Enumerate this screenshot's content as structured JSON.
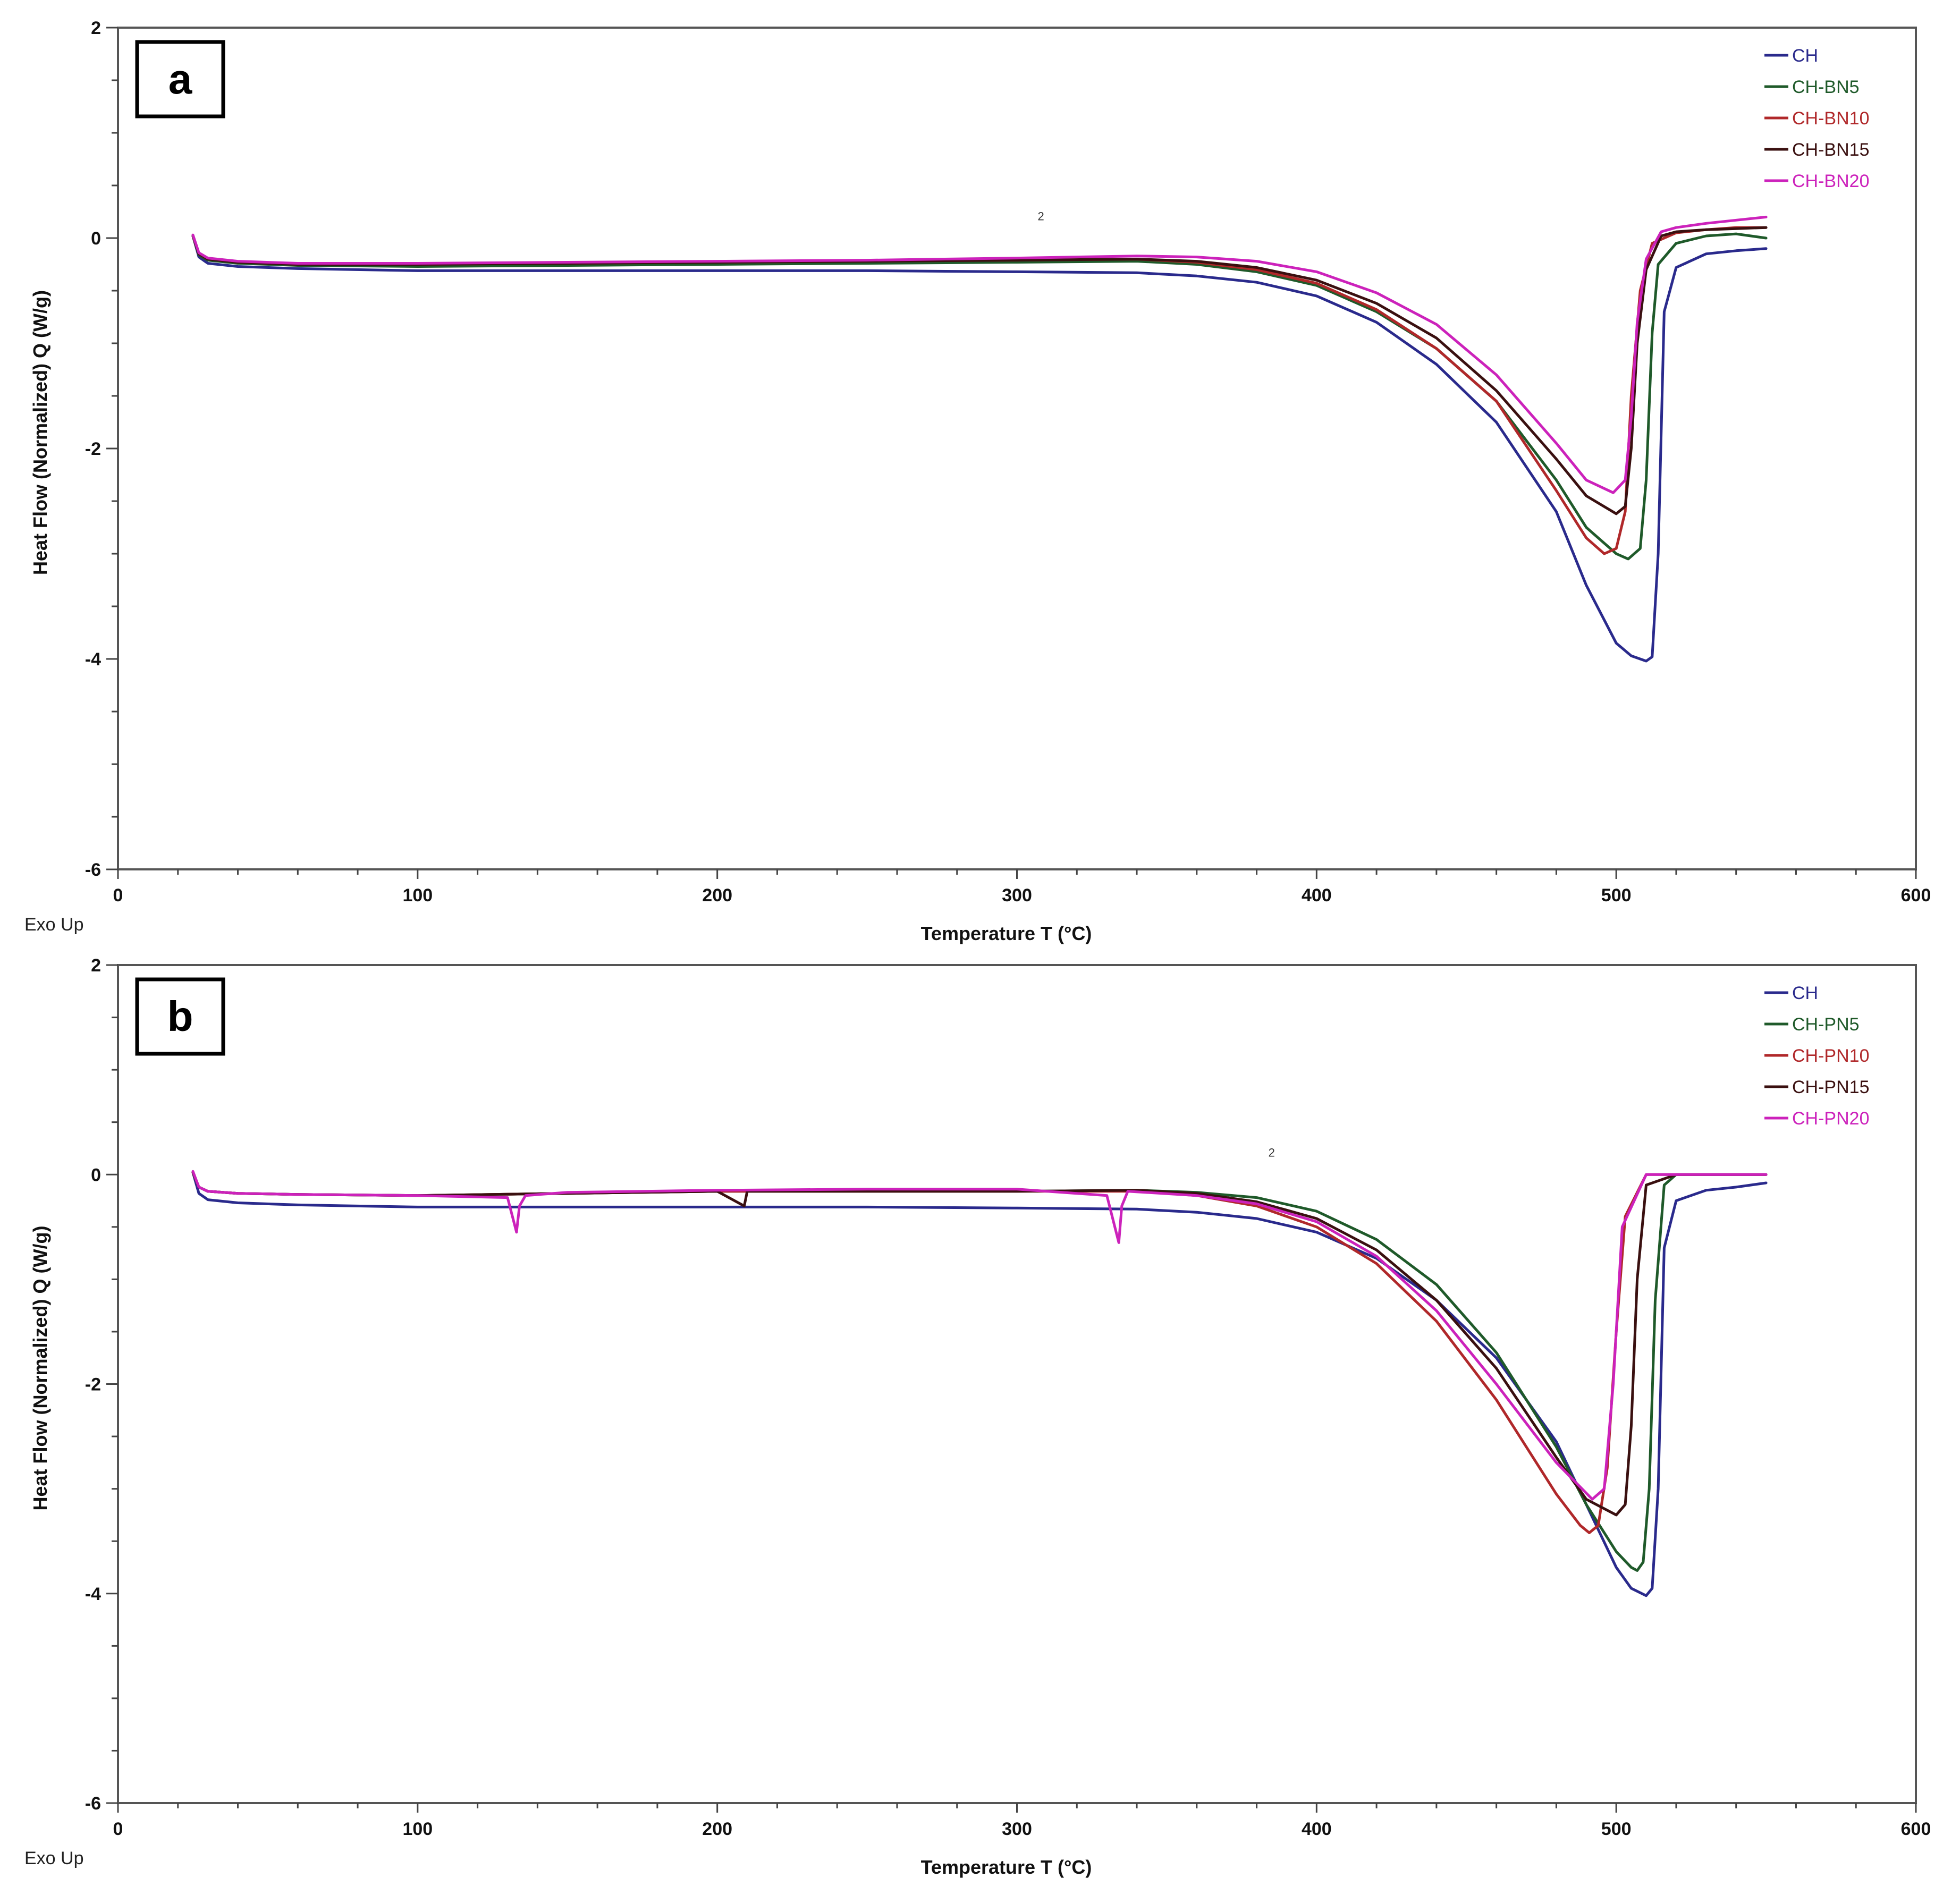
{
  "figure": {
    "panels": [
      {
        "id": "a",
        "letter": "a",
        "exo_label": "Exo Up",
        "xlabel": "Temperature T (°C)",
        "ylabel": "Heat Flow (Normalized) Q (W/g)",
        "annotation_mark": "2",
        "legend": [
          {
            "label": "CH",
            "color": "#2a2a8c"
          },
          {
            "label": "CH-BN5",
            "color": "#1f5a2a"
          },
          {
            "label": "CH-BN10",
            "color": "#b0282a"
          },
          {
            "label": "CH-BN15",
            "color": "#3a1010"
          },
          {
            "label": "CH-BN20",
            "color": "#cc22bb"
          }
        ]
      },
      {
        "id": "b",
        "letter": "b",
        "exo_label": "Exo Up",
        "xlabel": "Temperature T (°C)",
        "ylabel": "Heat Flow (Normalized) Q (W/g)",
        "annotation_mark": "2",
        "legend": [
          {
            "label": "CH",
            "color": "#2a2a8c"
          },
          {
            "label": "CH-PN5",
            "color": "#1f5a2a"
          },
          {
            "label": "CH-PN10",
            "color": "#b0282a"
          },
          {
            "label": "CH-PN15",
            "color": "#3a1010"
          },
          {
            "label": "CH-PN20",
            "color": "#cc22bb"
          }
        ]
      }
    ]
  },
  "chart_data": [
    {
      "type": "line",
      "title": "a",
      "xlabel": "Temperature T (°C)",
      "ylabel": "Heat Flow (Normalized) Q (W/g)",
      "xlim": [
        0,
        600
      ],
      "ylim": [
        -6,
        2
      ],
      "xticks": [
        0,
        100,
        200,
        300,
        400,
        500,
        600
      ],
      "yticks": [
        2,
        0,
        -2,
        -4,
        -6
      ],
      "grid": false,
      "legend_position": "upper right",
      "annotations": [
        "Exo Up",
        "2"
      ],
      "series": [
        {
          "name": "CH",
          "color": "#2a2a8c",
          "x": [
            25,
            27,
            30,
            40,
            60,
            100,
            150,
            200,
            250,
            300,
            340,
            360,
            380,
            400,
            420,
            440,
            460,
            480,
            490,
            500,
            505,
            510,
            512,
            514,
            516,
            520,
            530,
            540,
            550
          ],
          "y": [
            0.02,
            -0.18,
            -0.24,
            -0.27,
            -0.29,
            -0.31,
            -0.31,
            -0.31,
            -0.31,
            -0.32,
            -0.33,
            -0.36,
            -0.42,
            -0.55,
            -0.8,
            -1.2,
            -1.75,
            -2.6,
            -3.3,
            -3.85,
            -3.97,
            -4.02,
            -3.98,
            -3.0,
            -0.7,
            -0.28,
            -0.15,
            -0.12,
            -0.1
          ]
        },
        {
          "name": "CH-BN5",
          "color": "#1f5a2a",
          "x": [
            25,
            27,
            30,
            40,
            60,
            100,
            150,
            200,
            250,
            300,
            340,
            360,
            380,
            400,
            420,
            440,
            460,
            480,
            490,
            500,
            504,
            508,
            510,
            512,
            514,
            520,
            530,
            540,
            550
          ],
          "y": [
            0.02,
            -0.16,
            -0.21,
            -0.24,
            -0.26,
            -0.27,
            -0.26,
            -0.25,
            -0.24,
            -0.23,
            -0.22,
            -0.25,
            -0.32,
            -0.45,
            -0.7,
            -1.05,
            -1.55,
            -2.3,
            -2.75,
            -3.0,
            -3.05,
            -2.95,
            -2.3,
            -0.9,
            -0.25,
            -0.05,
            0.02,
            0.04,
            0.0
          ]
        },
        {
          "name": "CH-BN10",
          "color": "#b0282a",
          "x": [
            25,
            27,
            30,
            40,
            60,
            100,
            150,
            200,
            250,
            300,
            340,
            360,
            380,
            400,
            420,
            440,
            460,
            480,
            490,
            496,
            500,
            503,
            505,
            508,
            512,
            520,
            530,
            540,
            550
          ],
          "y": [
            0.02,
            -0.15,
            -0.2,
            -0.23,
            -0.25,
            -0.25,
            -0.24,
            -0.23,
            -0.22,
            -0.21,
            -0.2,
            -0.23,
            -0.3,
            -0.43,
            -0.68,
            -1.05,
            -1.55,
            -2.4,
            -2.85,
            -3.0,
            -2.95,
            -2.6,
            -1.5,
            -0.5,
            -0.05,
            0.05,
            0.08,
            0.1,
            0.1
          ]
        },
        {
          "name": "CH-BN15",
          "color": "#3a1010",
          "x": [
            25,
            27,
            30,
            40,
            60,
            100,
            150,
            200,
            250,
            300,
            340,
            360,
            380,
            400,
            420,
            440,
            460,
            480,
            490,
            500,
            503,
            505,
            507,
            510,
            515,
            520,
            530,
            540,
            550
          ],
          "y": [
            0.02,
            -0.15,
            -0.2,
            -0.23,
            -0.25,
            -0.25,
            -0.24,
            -0.23,
            -0.22,
            -0.21,
            -0.2,
            -0.22,
            -0.28,
            -0.4,
            -0.62,
            -0.95,
            -1.45,
            -2.1,
            -2.45,
            -2.62,
            -2.55,
            -2.0,
            -1.0,
            -0.3,
            0.02,
            0.06,
            0.08,
            0.09,
            0.1
          ]
        },
        {
          "name": "CH-BN20",
          "color": "#cc22bb",
          "x": [
            25,
            27,
            30,
            40,
            60,
            100,
            150,
            200,
            250,
            300,
            340,
            360,
            380,
            400,
            420,
            440,
            460,
            480,
            490,
            499,
            503,
            505,
            507,
            510,
            515,
            520,
            530,
            540,
            550
          ],
          "y": [
            0.03,
            -0.14,
            -0.19,
            -0.22,
            -0.24,
            -0.24,
            -0.23,
            -0.22,
            -0.21,
            -0.19,
            -0.17,
            -0.18,
            -0.22,
            -0.32,
            -0.52,
            -0.82,
            -1.3,
            -1.95,
            -2.3,
            -2.42,
            -2.3,
            -1.7,
            -0.8,
            -0.2,
            0.06,
            0.1,
            0.14,
            0.17,
            0.2
          ]
        }
      ]
    },
    {
      "type": "line",
      "title": "b",
      "xlabel": "Temperature T (°C)",
      "ylabel": "Heat Flow (Normalized) Q (W/g)",
      "xlim": [
        0,
        600
      ],
      "ylim": [
        -6,
        2
      ],
      "xticks": [
        0,
        100,
        200,
        300,
        400,
        500,
        600
      ],
      "yticks": [
        2,
        0,
        -2,
        -4,
        -6
      ],
      "grid": false,
      "legend_position": "upper right",
      "annotations": [
        "Exo Up",
        "2"
      ],
      "series": [
        {
          "name": "CH",
          "color": "#2a2a8c",
          "x": [
            25,
            27,
            30,
            40,
            60,
            100,
            150,
            200,
            250,
            300,
            340,
            360,
            380,
            400,
            420,
            440,
            460,
            480,
            490,
            500,
            505,
            510,
            512,
            514,
            516,
            520,
            530,
            540,
            550
          ],
          "y": [
            0.02,
            -0.18,
            -0.24,
            -0.27,
            -0.29,
            -0.31,
            -0.31,
            -0.31,
            -0.31,
            -0.32,
            -0.33,
            -0.36,
            -0.42,
            -0.55,
            -0.8,
            -1.2,
            -1.75,
            -2.55,
            -3.15,
            -3.75,
            -3.95,
            -4.02,
            -3.95,
            -3.0,
            -0.7,
            -0.25,
            -0.15,
            -0.12,
            -0.08
          ]
        },
        {
          "name": "CH-PN5",
          "color": "#1f5a2a",
          "x": [
            25,
            27,
            30,
            40,
            60,
            100,
            150,
            200,
            250,
            300,
            340,
            360,
            380,
            400,
            420,
            440,
            460,
            480,
            490,
            500,
            505,
            507,
            509,
            511,
            513,
            516,
            520,
            530,
            550
          ],
          "y": [
            0.02,
            -0.12,
            -0.16,
            -0.18,
            -0.19,
            -0.2,
            -0.18,
            -0.16,
            -0.16,
            -0.16,
            -0.15,
            -0.17,
            -0.22,
            -0.35,
            -0.62,
            -1.05,
            -1.7,
            -2.6,
            -3.15,
            -3.6,
            -3.75,
            -3.78,
            -3.7,
            -3.0,
            -1.2,
            -0.1,
            0.0,
            0.0,
            0.0
          ]
        },
        {
          "name": "CH-PN10",
          "color": "#b0282a",
          "x": [
            25,
            27,
            30,
            40,
            60,
            100,
            150,
            200,
            250,
            300,
            340,
            360,
            380,
            400,
            420,
            440,
            460,
            470,
            480,
            488,
            491,
            494,
            497,
            500,
            503,
            510,
            520,
            530,
            550
          ],
          "y": [
            0.02,
            -0.12,
            -0.16,
            -0.18,
            -0.19,
            -0.2,
            -0.18,
            -0.16,
            -0.16,
            -0.16,
            -0.16,
            -0.2,
            -0.3,
            -0.5,
            -0.85,
            -1.4,
            -2.15,
            -2.6,
            -3.05,
            -3.35,
            -3.42,
            -3.35,
            -2.8,
            -1.5,
            -0.4,
            0.0,
            0.0,
            0.0,
            0.0
          ]
        },
        {
          "name": "CH-PN15",
          "color": "#3a1010",
          "x": [
            25,
            27,
            30,
            40,
            60,
            100,
            150,
            200,
            209,
            210,
            250,
            300,
            340,
            360,
            380,
            400,
            420,
            440,
            460,
            480,
            490,
            500,
            503,
            505,
            507,
            510,
            520,
            530,
            550
          ],
          "y": [
            0.02,
            -0.12,
            -0.16,
            -0.18,
            -0.19,
            -0.2,
            -0.18,
            -0.16,
            -0.3,
            -0.16,
            -0.16,
            -0.16,
            -0.15,
            -0.18,
            -0.26,
            -0.42,
            -0.72,
            -1.2,
            -1.85,
            -2.7,
            -3.1,
            -3.25,
            -3.15,
            -2.4,
            -1.0,
            -0.1,
            0.0,
            0.0,
            0.0
          ]
        },
        {
          "name": "CH-PN20",
          "color": "#cc22bb",
          "x": [
            25,
            27,
            30,
            40,
            60,
            100,
            130,
            133,
            134,
            136,
            150,
            200,
            250,
            300,
            330,
            334,
            335,
            337,
            360,
            380,
            400,
            420,
            440,
            460,
            480,
            492,
            496,
            499,
            502,
            510,
            550
          ],
          "y": [
            0.03,
            -0.12,
            -0.16,
            -0.18,
            -0.19,
            -0.2,
            -0.22,
            -0.55,
            -0.3,
            -0.2,
            -0.17,
            -0.15,
            -0.14,
            -0.14,
            -0.2,
            -0.65,
            -0.3,
            -0.16,
            -0.2,
            -0.28,
            -0.45,
            -0.78,
            -1.3,
            -2.0,
            -2.75,
            -3.1,
            -3.0,
            -2.0,
            -0.5,
            0.0,
            0.0
          ]
        }
      ]
    }
  ]
}
